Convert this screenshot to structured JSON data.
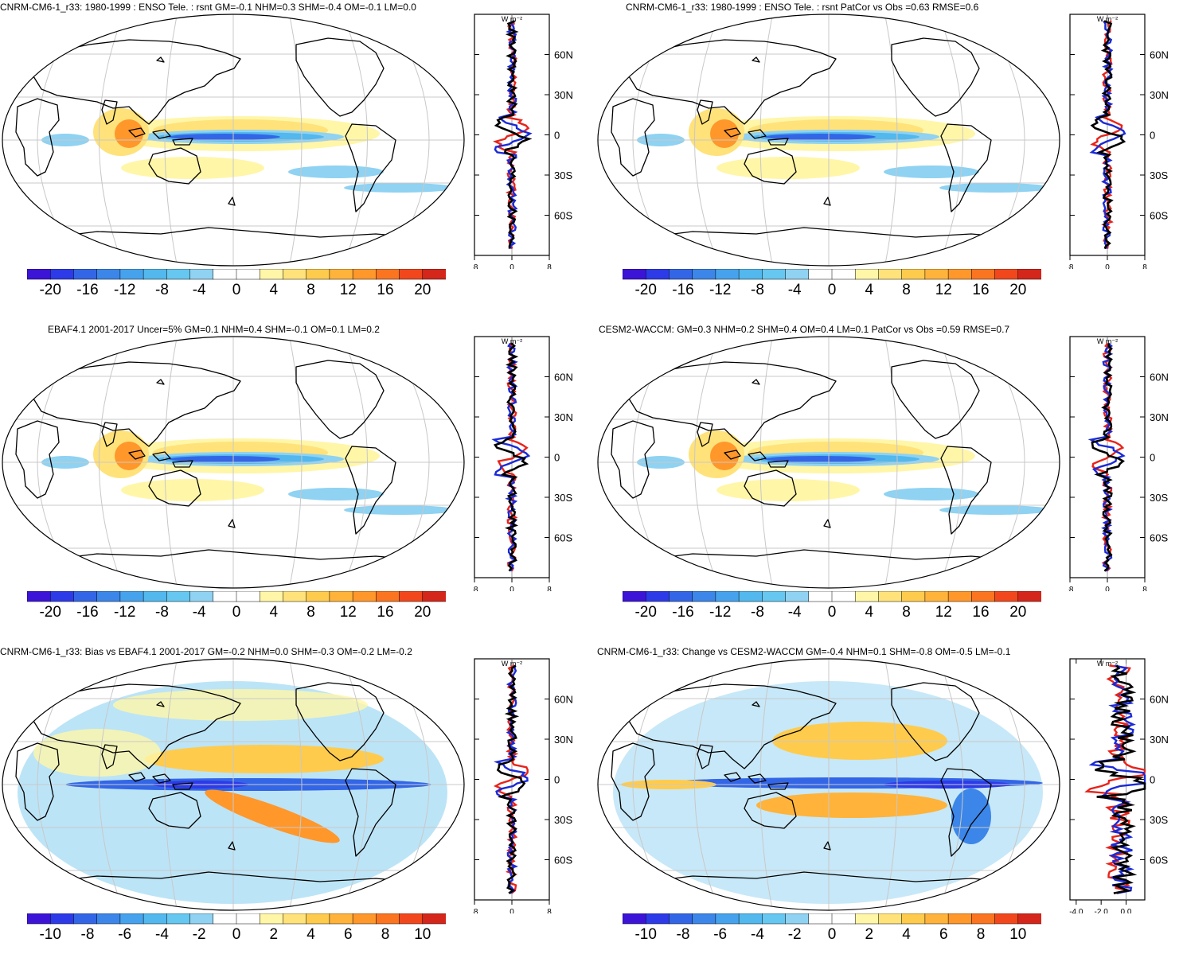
{
  "colors": {
    "scale": [
      "#3c14d8",
      "#2d3ae8",
      "#3366e6",
      "#3b86e8",
      "#46a2ec",
      "#52b8ee",
      "#66c7f0",
      "#8fd2f2",
      "#ffffff",
      "#ffffff",
      "#fff6a8",
      "#ffe27a",
      "#ffcb4d",
      "#ffb33a",
      "#ff972b",
      "#fb7420",
      "#f2471c",
      "#d4261a"
    ],
    "model_line": "#e8231a",
    "obs_line": "#1a2ad6",
    "diff_line": "#000000",
    "land_outline": "#000000",
    "graticule": "#c8c8c8"
  },
  "unit_label": "W m⁻²",
  "lat_labels": [
    "60N",
    "30N",
    "0",
    "30S",
    "60S"
  ],
  "panels": [
    {
      "title": "CNRM-CM6-1_r33: 1980-1999 : ENSO Tele. : rsnt GM=-0.1 NHM=0.3 SHM=-0.4 OM=-0.1 LM=0.0",
      "colorbar_labels": [
        "-20",
        "-16",
        "-12",
        "-8",
        "-4",
        "0",
        "4",
        "8",
        "12",
        "16",
        "20"
      ],
      "zonal_ticks": [
        "-8",
        "0",
        "8"
      ],
      "zonal_range": [
        -8,
        8
      ]
    },
    {
      "title": "CNRM-CM6-1_r33: 1980-1999 : ENSO Tele. : rsnt PatCor vs Obs =0.63 RMSE=0.6",
      "colorbar_labels": [
        "-20",
        "-16",
        "-12",
        "-8",
        "-4",
        "0",
        "4",
        "8",
        "12",
        "16",
        "20"
      ],
      "zonal_ticks": [
        "-8",
        "0",
        "8"
      ],
      "zonal_range": [
        -8,
        8
      ]
    },
    {
      "title": "EBAF4.1 2001-2017 Uncer=5% GM=0.1 NHM=0.4 SHM=-0.1 OM=0.1 LM=0.2",
      "colorbar_labels": [
        "-20",
        "-16",
        "-12",
        "-8",
        "-4",
        "0",
        "4",
        "8",
        "12",
        "16",
        "20"
      ],
      "zonal_ticks": [
        "-8",
        "0",
        "8"
      ],
      "zonal_range": [
        -8,
        8
      ]
    },
    {
      "title": "CESM2-WACCM: GM=0.3 NHM=0.2 SHM=0.4 OM=0.4 LM=0.1 PatCor vs Obs =0.59 RMSE=0.7",
      "colorbar_labels": [
        "-20",
        "-16",
        "-12",
        "-8",
        "-4",
        "0",
        "4",
        "8",
        "12",
        "16",
        "20"
      ],
      "zonal_ticks": [
        "-8",
        "0",
        "8"
      ],
      "zonal_range": [
        -8,
        8
      ]
    },
    {
      "title": "CNRM-CM6-1_r33: Bias vs EBAF4.1 2001-2017 GM=-0.2 NHM=0.0 SHM=-0.3 OM=-0.2 LM=-0.2",
      "colorbar_labels": [
        "-10",
        "-8",
        "-6",
        "-4",
        "-2",
        "0",
        "2",
        "4",
        "6",
        "8",
        "10"
      ],
      "zonal_ticks": [
        "-8",
        "0",
        "8"
      ],
      "zonal_range": [
        -8,
        8
      ]
    },
    {
      "title": "CNRM-CM6-1_r33: Change vs CESM2-WACCM GM=-0.4 NHM=0.1 SHM=-0.8 OM=-0.5 LM=-0.1",
      "colorbar_labels": [
        "-10",
        "-8",
        "-6",
        "-4",
        "-2",
        "0",
        "2",
        "4",
        "6",
        "8",
        "10"
      ],
      "zonal_ticks": [
        "-4.0",
        "-2.0",
        "0.0"
      ],
      "zonal_range": [
        -4.5,
        1.5
      ]
    }
  ]
}
